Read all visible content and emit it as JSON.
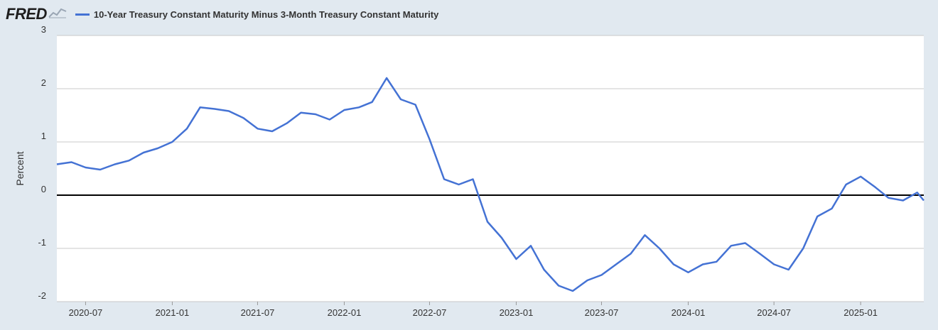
{
  "header": {
    "logo_text": "FRED",
    "legend_label": "10-Year Treasury Constant Maturity Minus 3-Month Treasury Constant Maturity"
  },
  "colors": {
    "background": "#e1e9f0",
    "plot_background": "#ffffff",
    "series": "#4472d4",
    "grid": "#c8c8c8",
    "zero_line": "#000000"
  },
  "icons": [
    "chart-line-icon"
  ],
  "chart_data": {
    "type": "line",
    "ylabel": "Percent",
    "ylim": [
      -2,
      3
    ],
    "yticks": [
      3,
      2,
      1,
      0,
      -1,
      -2
    ],
    "xlim": [
      "2020-05-01",
      "2025-05-15"
    ],
    "xticks": [
      "2020-07",
      "2021-01",
      "2021-07",
      "2022-01",
      "2022-07",
      "2023-01",
      "2023-07",
      "2024-01",
      "2024-07",
      "2025-01"
    ],
    "grid": true,
    "legend": "top-left",
    "series": [
      {
        "name": "10-Year Treasury Constant Maturity Minus 3-Month Treasury Constant Maturity",
        "x": [
          "2020-05-01",
          "2020-06-01",
          "2020-07-01",
          "2020-08-01",
          "2020-09-01",
          "2020-10-01",
          "2020-11-01",
          "2020-12-01",
          "2021-01-01",
          "2021-02-01",
          "2021-03-01",
          "2021-04-01",
          "2021-05-01",
          "2021-06-01",
          "2021-07-01",
          "2021-08-01",
          "2021-09-01",
          "2021-10-01",
          "2021-11-01",
          "2021-12-01",
          "2022-01-01",
          "2022-02-01",
          "2022-03-01",
          "2022-04-01",
          "2022-05-01",
          "2022-06-01",
          "2022-07-01",
          "2022-08-01",
          "2022-09-01",
          "2022-10-01",
          "2022-11-01",
          "2022-12-01",
          "2023-01-01",
          "2023-02-01",
          "2023-03-01",
          "2023-04-01",
          "2023-05-01",
          "2023-06-01",
          "2023-07-01",
          "2023-08-01",
          "2023-09-01",
          "2023-10-01",
          "2023-11-01",
          "2023-12-01",
          "2024-01-01",
          "2024-02-01",
          "2024-03-01",
          "2024-04-01",
          "2024-05-01",
          "2024-06-01",
          "2024-07-01",
          "2024-08-01",
          "2024-09-01",
          "2024-10-01",
          "2024-11-01",
          "2024-12-01",
          "2025-01-01",
          "2025-02-01",
          "2025-03-01",
          "2025-04-01",
          "2025-05-01",
          "2025-05-15"
        ],
        "values": [
          0.58,
          0.62,
          0.52,
          0.48,
          0.58,
          0.65,
          0.8,
          0.88,
          1.0,
          1.25,
          1.65,
          1.62,
          1.58,
          1.45,
          1.25,
          1.2,
          1.35,
          1.55,
          1.52,
          1.42,
          1.6,
          1.65,
          1.75,
          2.2,
          1.8,
          1.7,
          1.05,
          0.3,
          0.2,
          0.3,
          -0.5,
          -0.8,
          -1.2,
          -0.95,
          -1.4,
          -1.7,
          -1.8,
          -1.6,
          -1.5,
          -1.3,
          -1.1,
          -0.75,
          -1.0,
          -1.3,
          -1.45,
          -1.3,
          -1.25,
          -0.95,
          -0.9,
          -1.1,
          -1.3,
          -1.4,
          -1.0,
          -0.4,
          -0.25,
          0.2,
          0.35,
          0.15,
          -0.05,
          -0.1,
          0.05,
          -0.1
        ]
      }
    ]
  }
}
